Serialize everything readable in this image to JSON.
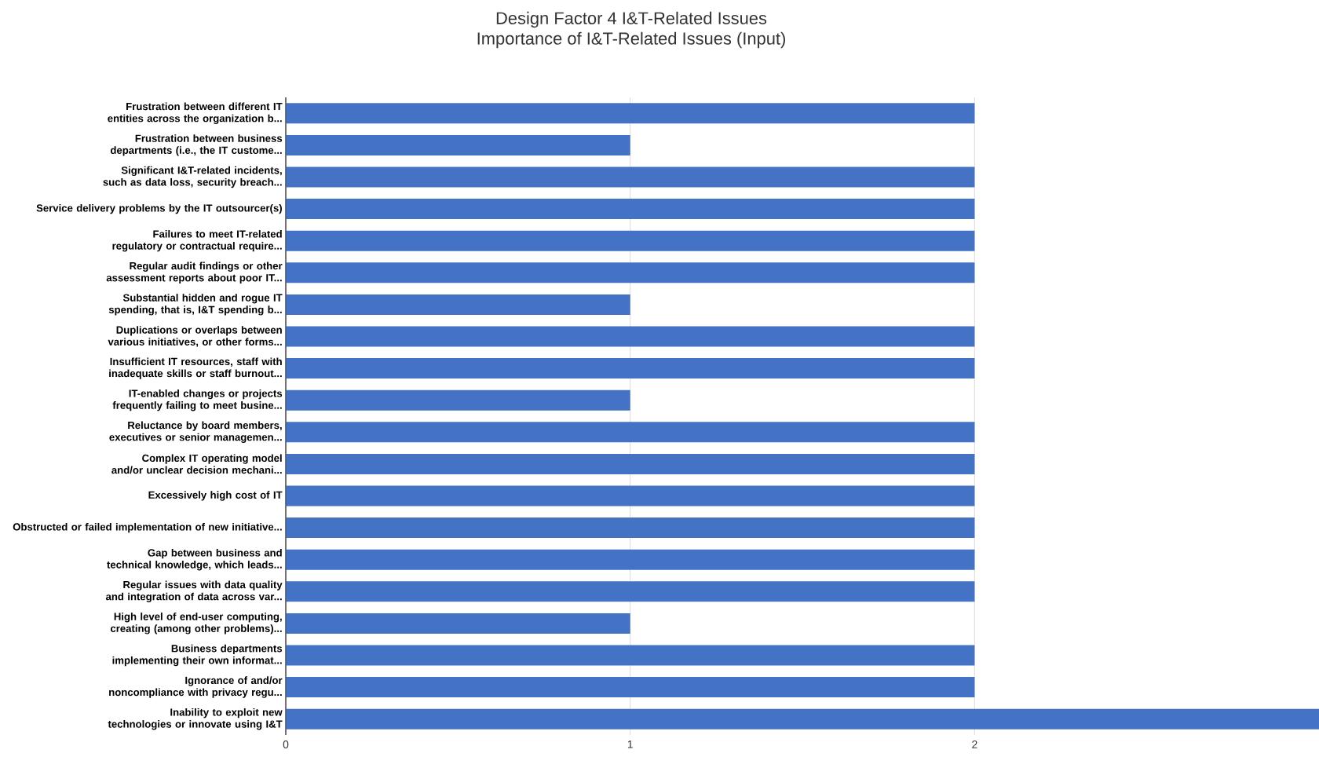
{
  "chart_data": {
    "type": "bar",
    "orientation": "horizontal",
    "title": "Design Factor 4 I&T-Related Issues",
    "subtitle": "Importance of I&T-Related Issues (Input)",
    "categories": [
      "Frustration between different IT entities across the organization b...",
      "Frustration between business departments (i.e., the IT custome...",
      "Significant I&T-related incidents, such as data loss, security breach...",
      "Service delivery problems by the IT outsourcer(s)",
      "Failures to meet IT-related regulatory or contractual require...",
      "Regular audit findings or other assessment reports about poor IT...",
      "Substantial hidden and rogue IT spending, that is, I&T spending b...",
      "Duplications or overlaps between various initiatives, or other forms...",
      "Insufficient IT resources, staff with inadequate skills or staff burnout...",
      "IT-enabled changes or projects frequently failing to meet busine...",
      "Reluctance by board members, executives or senior managemen...",
      "Complex IT operating model and/or unclear decision mechani...",
      "Excessively high cost of IT",
      "Obstructed or failed implementation of new initiative...",
      "Gap between business and technical knowledge, which leads...",
      "Regular issues with data quality and integration of data across var...",
      "High level of end-user computing, creating (among other problems)...",
      "Business departments implementing their own informat...",
      "Ignorance of and/or noncompliance with privacy regu...",
      "Inability to exploit new technologies or innovate using I&T"
    ],
    "values": [
      2,
      1,
      2,
      2,
      2,
      2,
      1,
      2,
      2,
      1,
      2,
      2,
      2,
      2,
      2,
      2,
      1,
      2,
      2,
      3
    ],
    "color": "#4472c4",
    "xlim": [
      0,
      3
    ],
    "xticks": [
      0,
      1,
      2
    ],
    "grid": "x"
  }
}
